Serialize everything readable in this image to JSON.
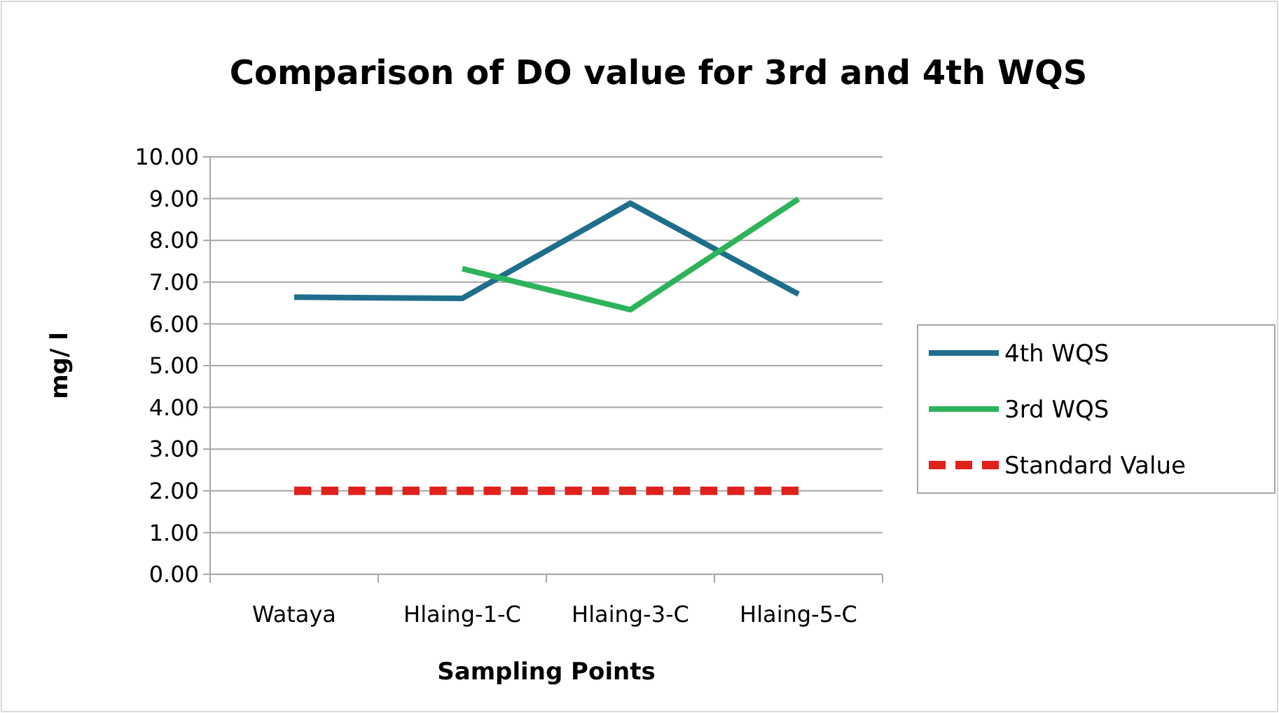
{
  "chart_data": {
    "type": "line",
    "title": "Comparison of DO value for 3rd and 4th WQS",
    "xlabel": "Sampling Points",
    "ylabel": "mg/ l",
    "categories": [
      "Wataya",
      "Hlaing-1-C",
      "Hlaing-3-C",
      "Hlaing-5-C"
    ],
    "series": [
      {
        "name": "4th WQS",
        "color": "#1f6e8c",
        "values": [
          6.64,
          6.61,
          8.89,
          6.71
        ]
      },
      {
        "name": "3rd WQS",
        "color": "#2db35a",
        "values": [
          null,
          7.32,
          6.34,
          8.99
        ]
      },
      {
        "name": "Standard Value",
        "color": "#e0201b",
        "values": [
          2,
          2,
          2,
          2
        ],
        "line_style": "dashed"
      }
    ],
    "ylim": [
      0,
      10
    ],
    "yticks": [
      {
        "value": 0,
        "label": "0.00"
      },
      {
        "value": 1,
        "label": "1.00"
      },
      {
        "value": 2,
        "label": "2.00"
      },
      {
        "value": 3,
        "label": "3.00"
      },
      {
        "value": 4,
        "label": "4.00"
      },
      {
        "value": 5,
        "label": "5.00"
      },
      {
        "value": 6,
        "label": "6.00"
      },
      {
        "value": 7,
        "label": "7.00"
      },
      {
        "value": 8,
        "label": "8.00"
      },
      {
        "value": 9,
        "label": "9.00"
      },
      {
        "value": 10,
        "label": "10.00"
      }
    ],
    "grid": "y",
    "legend": "right",
    "marker": "none"
  }
}
